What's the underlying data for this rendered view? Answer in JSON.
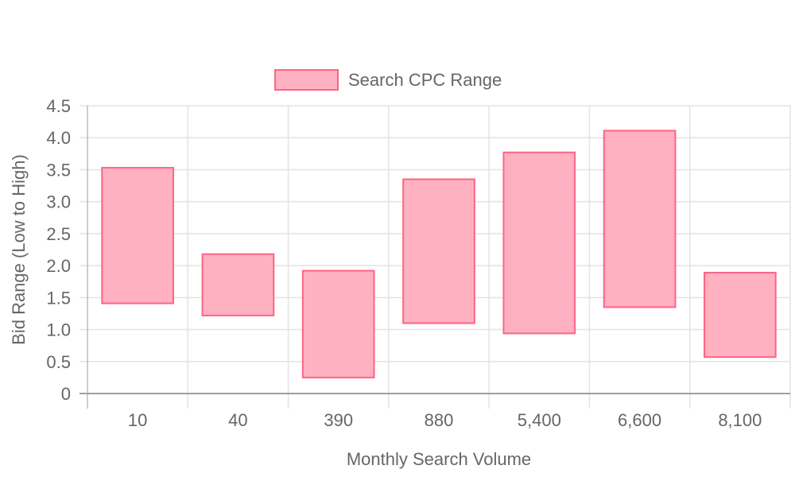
{
  "chart_data": {
    "type": "bar",
    "subtype": "floating-range",
    "categories": [
      "10",
      "40",
      "390",
      "880",
      "5,400",
      "6,600",
      "8,100"
    ],
    "series": [
      {
        "name": "Search CPC Range",
        "ranges": [
          [
            1.41,
            3.53
          ],
          [
            1.22,
            2.18
          ],
          [
            0.25,
            1.92
          ],
          [
            1.1,
            3.35
          ],
          [
            0.94,
            3.77
          ],
          [
            1.35,
            4.11
          ],
          [
            0.57,
            1.89
          ]
        ],
        "fill": "#FFB1C1",
        "stroke": "#FF6384"
      }
    ],
    "xlabel": "Monthly Search Volume",
    "ylabel": "Bid Range (Low to High)",
    "ylim": [
      0,
      4.5
    ],
    "y_ticks": [
      "0",
      "0.5",
      "1.0",
      "1.5",
      "2.0",
      "2.5",
      "3.0",
      "3.5",
      "4.0",
      "4.5"
    ],
    "grid": true,
    "legend_position": "top"
  }
}
